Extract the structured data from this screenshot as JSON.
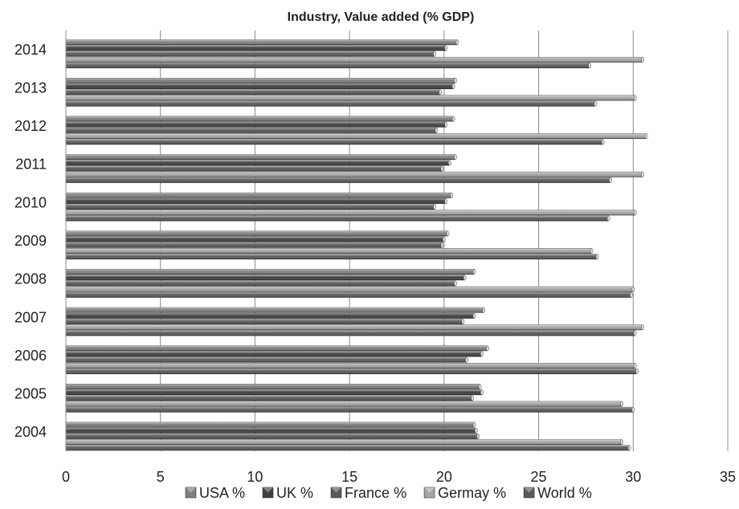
{
  "chart_data": {
    "type": "bar",
    "orientation": "horizontal",
    "title": "Industry, Value added (% GDP)",
    "xlabel": "",
    "ylabel": "",
    "xlim": [
      0,
      35
    ],
    "x_ticks": [
      "0",
      "5",
      "10",
      "15",
      "20",
      "25",
      "30",
      "35"
    ],
    "grid": "vertical major gridlines",
    "legend_position": "bottom",
    "categories": [
      "2004",
      "2005",
      "2006",
      "2007",
      "2008",
      "2009",
      "2010",
      "2011",
      "2012",
      "2013",
      "2014"
    ],
    "series": [
      {
        "name": "USA %",
        "color": "#7f7f7f",
        "values": [
          21.6,
          21.9,
          22.3,
          22.1,
          21.6,
          20.2,
          20.4,
          20.6,
          20.5,
          20.6,
          20.7
        ]
      },
      {
        "name": "UK %",
        "color": "#404040",
        "values": [
          21.7,
          22.0,
          22.0,
          21.6,
          21.1,
          20.0,
          20.1,
          20.3,
          20.1,
          20.5,
          20.1
        ]
      },
      {
        "name": "France %",
        "color": "#595959",
        "values": [
          21.8,
          21.5,
          21.2,
          21.0,
          20.6,
          19.9,
          19.5,
          19.9,
          19.6,
          19.8,
          19.5
        ]
      },
      {
        "name": "Germay %",
        "color": "#a6a6a6",
        "values": [
          29.4,
          29.4,
          30.1,
          30.5,
          30.0,
          27.8,
          30.1,
          30.5,
          30.7,
          30.1,
          30.5
        ]
      },
      {
        "name": "World %",
        "color": "#5a5a5a",
        "values": [
          29.8,
          30.0,
          30.2,
          30.1,
          29.9,
          28.1,
          28.7,
          28.8,
          28.4,
          28.0,
          27.7
        ]
      }
    ]
  }
}
